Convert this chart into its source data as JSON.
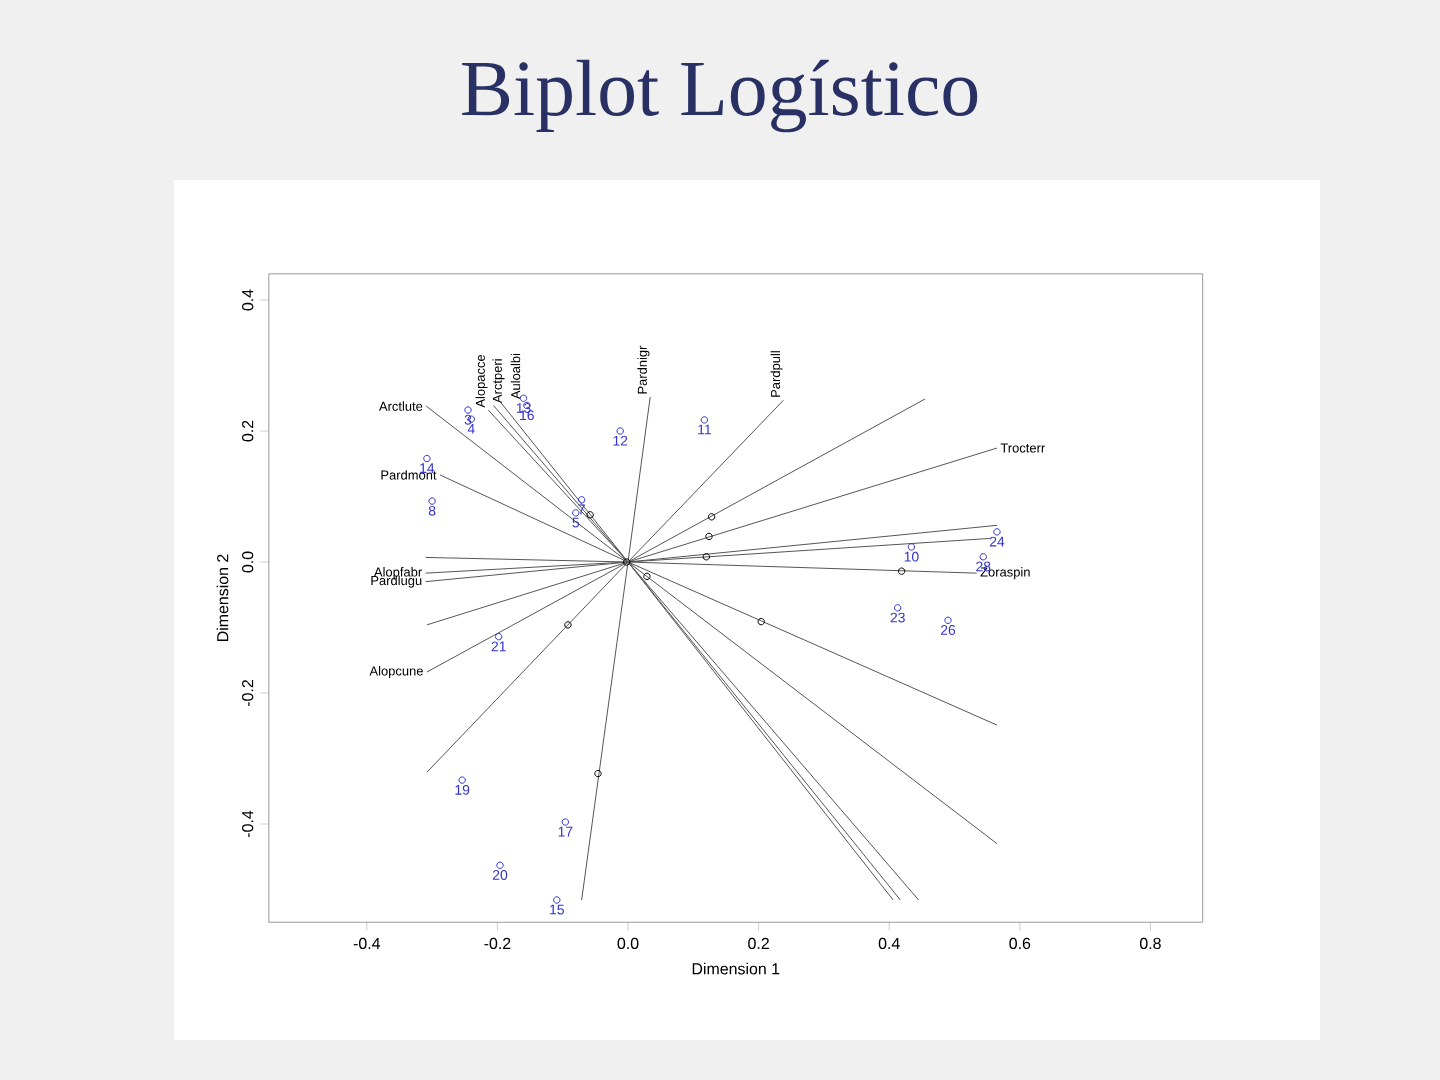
{
  "chart_data": {
    "type": "scatter",
    "title": "Biplot Logístico",
    "xlabel": "Dimension 1",
    "ylabel": "Dimension 2",
    "xlim": [
      -0.55,
      0.88
    ],
    "ylim": [
      -0.55,
      0.44
    ],
    "xticks": [
      -0.4,
      -0.2,
      {
        "value": 0,
        "label": "0.0"
      },
      0.2,
      0.4,
      0.6,
      0.8
    ],
    "yticks": [
      -0.4,
      -0.2,
      {
        "value": 0,
        "label": "0.0"
      },
      0.2,
      0.4
    ],
    "series": [
      {
        "type": "line",
        "name": "Arctlute",
        "color": "#555555",
        "x": [
          0,
          -0.309
        ],
        "values": [
          0,
          0.238
        ]
      },
      {
        "type": "line",
        "name": "Alopacce",
        "color": "#555555",
        "x": [
          0,
          -0.214
        ],
        "values": [
          0,
          0.232
        ]
      },
      {
        "type": "line",
        "name": "Arctperi",
        "color": "#555555",
        "x": [
          0,
          -0.206
        ],
        "values": [
          0,
          0.239
        ]
      },
      {
        "type": "line",
        "name": "Auloalbi",
        "color": "#555555",
        "x": [
          0,
          -0.196
        ],
        "values": [
          0,
          0.245
        ]
      },
      {
        "type": "line",
        "name": "Pardmont",
        "color": "#555555",
        "x": [
          0,
          -0.288
        ],
        "values": [
          0,
          0.133
        ]
      },
      {
        "type": "line",
        "color": "#555555",
        "x": [
          0,
          -0.31
        ],
        "values": [
          0,
          0.007
        ]
      },
      {
        "type": "line",
        "name": "Alopfabr",
        "color": "#555555",
        "x": [
          0,
          -0.31
        ],
        "values": [
          0,
          -0.017
        ]
      },
      {
        "type": "line",
        "name": "Pardlugu",
        "color": "#555555",
        "x": [
          0,
          -0.31
        ],
        "values": [
          0,
          -0.03
        ]
      },
      {
        "type": "line",
        "color": "#555555",
        "x": [
          0,
          -0.308
        ],
        "values": [
          0,
          -0.096
        ]
      },
      {
        "type": "line",
        "name": "Alopcune",
        "color": "#555555",
        "x": [
          0,
          -0.308
        ],
        "values": [
          0,
          -0.168
        ]
      },
      {
        "type": "line",
        "color": "#555555",
        "x": [
          0,
          -0.308
        ],
        "values": [
          0,
          -0.321
        ]
      },
      {
        "type": "line",
        "color": "#555555",
        "x": [
          0,
          -0.071
        ],
        "values": [
          0,
          -0.516
        ]
      },
      {
        "type": "line",
        "name": "Pardnigr",
        "color": "#555555",
        "x": [
          0,
          0.034
        ],
        "values": [
          0,
          0.252
        ]
      },
      {
        "type": "line",
        "name": "Pardpull",
        "color": "#555555",
        "x": [
          0,
          0.238
        ],
        "values": [
          0,
          0.247
        ]
      },
      {
        "type": "line",
        "color": "#555555",
        "x": [
          0,
          0.455
        ],
        "values": [
          0,
          0.249
        ]
      },
      {
        "type": "line",
        "name": "Trocterr",
        "color": "#555555",
        "x": [
          0,
          0.565
        ],
        "values": [
          0,
          0.174
        ]
      },
      {
        "type": "line",
        "color": "#555555",
        "x": [
          0,
          0.565
        ],
        "values": [
          0,
          0.056
        ]
      },
      {
        "type": "line",
        "color": "#555555",
        "x": [
          0,
          0.554
        ],
        "values": [
          0,
          0.036
        ]
      },
      {
        "type": "line",
        "name": "Zoraspin",
        "color": "#555555",
        "x": [
          0,
          0.534
        ],
        "values": [
          0,
          -0.017
        ]
      },
      {
        "type": "line",
        "color": "#555555",
        "x": [
          0,
          0.565
        ],
        "values": [
          0,
          -0.249
        ]
      },
      {
        "type": "line",
        "color": "#555555",
        "x": [
          0,
          0.565
        ],
        "values": [
          0,
          -0.43
        ]
      },
      {
        "type": "line",
        "color": "#555555",
        "x": [
          0,
          0.406
        ],
        "values": [
          0,
          -0.516
        ]
      },
      {
        "type": "line",
        "color": "#555555",
        "x": [
          0,
          0.417
        ],
        "values": [
          0,
          -0.516
        ]
      },
      {
        "type": "line",
        "color": "#555555",
        "x": [
          0,
          0.445
        ],
        "values": [
          0,
          -0.516
        ]
      },
      {
        "type": "scatter",
        "marker": "circle",
        "color": "#3333cc",
        "x": [
          -0.308,
          -0.3,
          -0.245,
          -0.24,
          -0.16,
          -0.155,
          -0.012,
          -0.071,
          -0.08,
          0.117,
          0.434,
          0.565,
          0.544,
          0.413,
          0.49,
          -0.198,
          -0.254,
          -0.096,
          -0.196,
          -0.109
        ],
        "values": [
          0.158,
          0.093,
          0.232,
          0.218,
          0.25,
          0.239,
          0.2,
          0.095,
          0.075,
          0.217,
          0.023,
          0.046,
          0.008,
          -0.07,
          -0.089,
          -0.114,
          -0.333,
          -0.397,
          -0.463,
          -0.516
        ]
      },
      {
        "type": "scatter",
        "marker": "circle",
        "color": "#000000",
        "x": [
          -0.058,
          -0.002,
          0.029,
          0.128,
          0.124,
          0.12,
          0.419,
          0.204,
          -0.092,
          -0.046
        ],
        "values": [
          0.072,
          0,
          -0.022,
          0.069,
          0.039,
          0.008,
          -0.014,
          -0.091,
          -0.096,
          -0.323
        ]
      }
    ],
    "annotations": [
      {
        "text": "14",
        "x": -0.308,
        "y": 0.158
      },
      {
        "text": "8",
        "x": -0.3,
        "y": 0.093
      },
      {
        "text": "3",
        "x": -0.245,
        "y": 0.232
      },
      {
        "text": "4",
        "x": -0.24,
        "y": 0.218
      },
      {
        "text": "13",
        "x": -0.16,
        "y": 0.25
      },
      {
        "text": "16",
        "x": -0.155,
        "y": 0.239
      },
      {
        "text": "12",
        "x": -0.012,
        "y": 0.2
      },
      {
        "text": "7",
        "x": -0.071,
        "y": 0.095
      },
      {
        "text": "5",
        "x": -0.08,
        "y": 0.075
      },
      {
        "text": "11",
        "x": 0.117,
        "y": 0.217
      },
      {
        "text": "10",
        "x": 0.434,
        "y": 0.023
      },
      {
        "text": "24",
        "x": 0.565,
        "y": 0.046
      },
      {
        "text": "28",
        "x": 0.544,
        "y": 0.008
      },
      {
        "text": "23",
        "x": 0.413,
        "y": -0.07
      },
      {
        "text": "26",
        "x": 0.49,
        "y": -0.089
      },
      {
        "text": "21",
        "x": -0.198,
        "y": -0.114
      },
      {
        "text": "19",
        "x": -0.254,
        "y": -0.333
      },
      {
        "text": "17",
        "x": -0.096,
        "y": -0.397
      },
      {
        "text": "20",
        "x": -0.196,
        "y": -0.463
      },
      {
        "text": "15",
        "x": -0.109,
        "y": -0.516
      }
    ]
  }
}
